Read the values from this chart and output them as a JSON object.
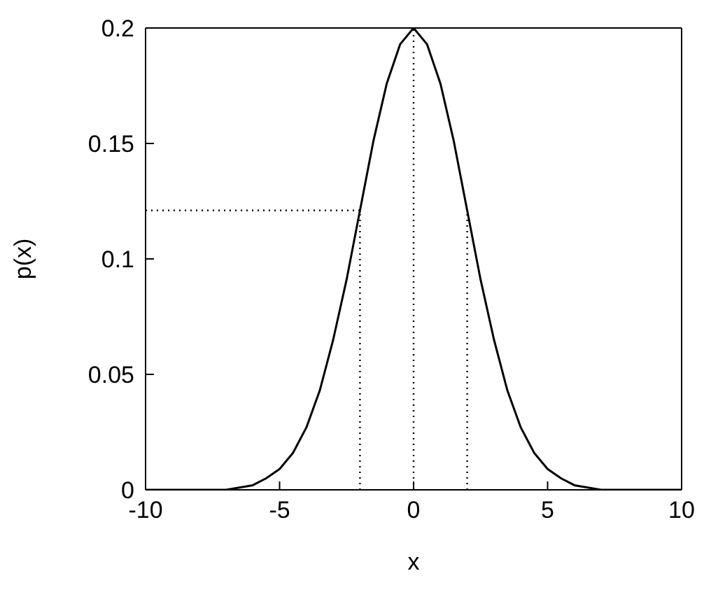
{
  "chart_data": {
    "type": "line",
    "xlabel": "x",
    "ylabel": "p(x)",
    "xlim": [
      -10,
      10
    ],
    "xticks": [
      -10,
      -5,
      0,
      5,
      10
    ],
    "ylim": [
      0,
      0.2
    ],
    "yticks": [
      0,
      0.05,
      0.1,
      0.15,
      0.2
    ],
    "grid": false,
    "marker": "none",
    "series": [
      {
        "color": "#000000",
        "line_style": "solid",
        "x": [
          -10,
          -8,
          -7,
          -6.5,
          -6,
          -5.5,
          -5,
          -4.5,
          -4,
          -3.5,
          -3,
          -2.5,
          -2,
          -1.5,
          -1,
          -0.5,
          0,
          0.5,
          1,
          1.5,
          2,
          2.5,
          3,
          3.5,
          4,
          4.5,
          5,
          5.5,
          6,
          6.5,
          7,
          8,
          10
        ],
        "values": [
          0,
          0,
          0,
          0.001,
          0.002,
          0.005,
          0.009,
          0.016,
          0.027,
          0.043,
          0.065,
          0.091,
          0.121,
          0.151,
          0.176,
          0.193,
          0.2,
          0.193,
          0.176,
          0.151,
          0.121,
          0.091,
          0.065,
          0.043,
          0.027,
          0.016,
          0.009,
          0.005,
          0.002,
          0.001,
          0,
          0,
          0
        ]
      },
      {
        "color": "#000000",
        "line_style": "dotted",
        "x": [
          -10,
          -2
        ],
        "values": [
          0.121,
          0.121
        ]
      },
      {
        "color": "#000000",
        "line_style": "dotted",
        "x": [
          -2,
          -2
        ],
        "values": [
          0,
          0.121
        ]
      },
      {
        "color": "#000000",
        "line_style": "dotted",
        "x": [
          0,
          0
        ],
        "values": [
          0,
          0.2
        ]
      },
      {
        "color": "#000000",
        "line_style": "dotted",
        "x": [
          2,
          2
        ],
        "values": [
          0,
          0.121
        ]
      }
    ]
  }
}
